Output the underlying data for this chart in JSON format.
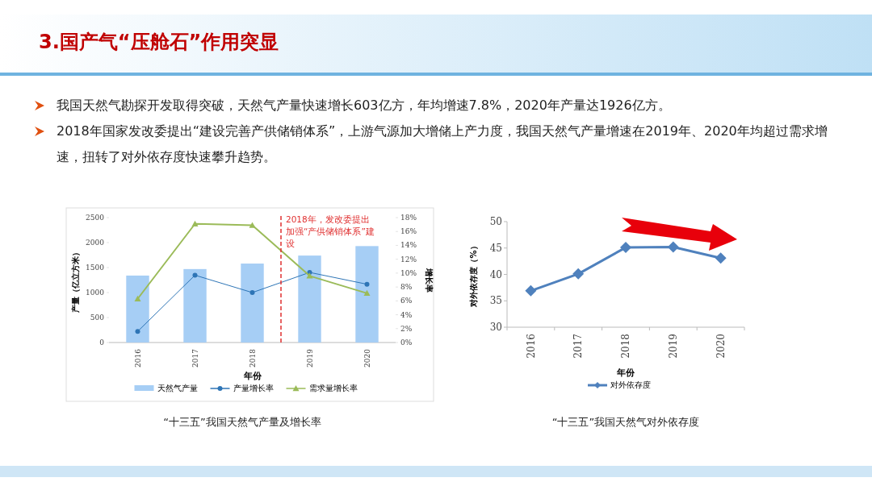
{
  "chart_data": [
    {
      "type": "bar",
      "title": "“十三五”我国天然气产量及增长率",
      "annotations": [
        "3.国产气“压舱石”作用突显",
        "我国天然气勘探开发取得突破，天然气产量快速增长603亿方，年均增速7.8%，2020年产量达1926亿方。",
        "2018年国家发改委提出“建设完善产供储销体系”，上游气源加大增储上产力度，我国天然气产量增速在2019年、2020年均超过需求增速，扭转了对外依存度快速攀升趋势。"
      ],
      "x": [
        2016,
        2017,
        2018,
        2019,
        2020
      ],
      "xlim": [
        2015.5,
        2020.5
      ],
      "xticks": [
        2016,
        2017,
        2018,
        2019,
        2020
      ],
      "xlabel": "年份",
      "ylabel": "产量（亿立方米）",
      "y2label": "增长率",
      "ylim": [
        0,
        2500
      ],
      "yticks": [
        0,
        500,
        1000,
        1500,
        2000,
        2500
      ],
      "y2lim": [
        0,
        18
      ],
      "y2ticks": [
        {
          "value": 0,
          "label": "0%"
        },
        {
          "value": 2,
          "label": "2%"
        },
        {
          "value": 4,
          "label": "4%"
        },
        {
          "value": 6,
          "label": "6%"
        },
        {
          "value": 8,
          "label": "8%"
        },
        {
          "value": 10,
          "label": "10%"
        },
        {
          "value": 12,
          "label": "12%"
        },
        {
          "value": 14,
          "label": "14%"
        },
        {
          "value": 16,
          "label": "16%"
        },
        {
          "value": 18,
          "label": "18%"
        }
      ],
      "series": [
        {
          "name": "天然气产量",
          "color": "#a6cef5",
          "values": [
            1340,
            1470,
            1580,
            1740,
            1930
          ]
        },
        {
          "name": "产量增长率",
          "type": "line",
          "axis": "y2",
          "marker": "circle",
          "color": "#2e75b6",
          "values": [
            1.6,
            9.7,
            7.2,
            10.1,
            8.4
          ]
        },
        {
          "name": "需求量增长率",
          "type": "line",
          "axis": "y2",
          "marker": "triangle",
          "color": "#9bbb59",
          "values": [
            6.3,
            17.1,
            16.9,
            9.6,
            7.1
          ]
        }
      ],
      "ref_lines": [
        {
          "axis": "x",
          "value": 2018.5,
          "label": "2018年，发改委提出加强“产供储销体系”建设",
          "color": "#e03030",
          "line_style": "dashed"
        }
      ],
      "legend": "bottom"
    },
    {
      "type": "line",
      "title": "“十三五”我国天然气对外依存度",
      "categories": [
        "2016",
        "2017",
        "2018",
        "2019",
        "2020"
      ],
      "xlabel": "年份",
      "ylabel": "对外依存度（%）",
      "ylim": [
        30,
        50
      ],
      "yticks": [
        30,
        35,
        40,
        45,
        50
      ],
      "marker": "diamond",
      "series": [
        {
          "name": "对外依存度",
          "color": "#4f81bd",
          "values": [
            36.9,
            40.1,
            45.1,
            45.2,
            43.1
          ]
        }
      ],
      "legend": "bottom"
    }
  ]
}
